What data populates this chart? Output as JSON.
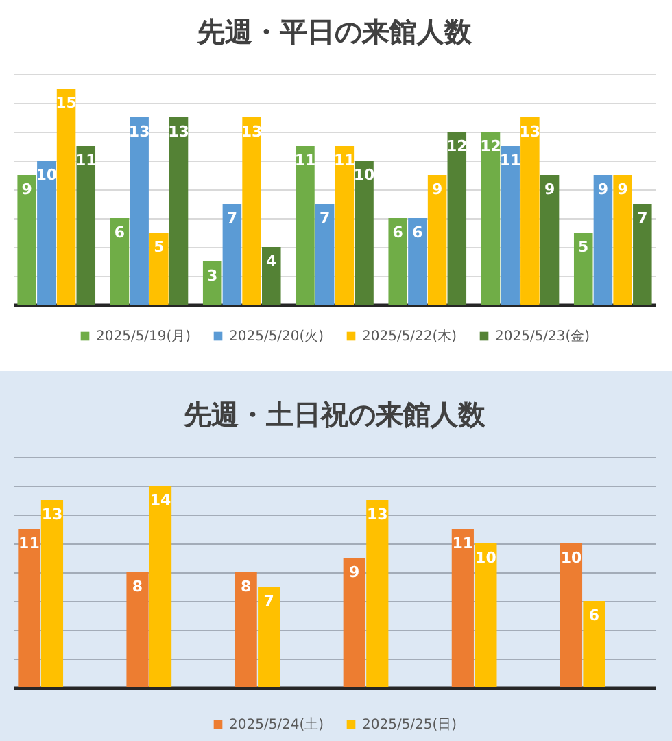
{
  "chart_data": [
    {
      "type": "bar",
      "title": "先週・平日の来館人数",
      "categories": [
        null,
        null,
        null,
        null,
        null,
        null,
        null
      ],
      "series": [
        {
          "name": "2025/5/19(月)",
          "color": "#70ad47",
          "values": [
            9,
            6,
            3,
            11,
            6,
            12,
            5
          ]
        },
        {
          "name": "2025/5/20(火)",
          "color": "#5b9bd5",
          "values": [
            10,
            13,
            7,
            7,
            6,
            11,
            9
          ]
        },
        {
          "name": "2025/5/22(木)",
          "color": "#ffc000",
          "values": [
            15,
            5,
            13,
            11,
            9,
            13,
            9
          ]
        },
        {
          "name": "2025/5/23(金)",
          "color": "#548235",
          "values": [
            11,
            13,
            4,
            10,
            12,
            9,
            7
          ]
        }
      ],
      "ylim": [
        0,
        16
      ],
      "yticks": [
        0,
        2,
        4,
        6,
        8,
        10,
        12,
        14,
        16
      ],
      "grid": "y",
      "tick_labels": false,
      "legend": "bottom",
      "data_labels": true
    },
    {
      "type": "bar",
      "title": "先週・土日祝の来館人数",
      "categories": [
        null,
        null,
        null,
        null,
        null,
        null
      ],
      "series": [
        {
          "name": "2025/5/24(土)",
          "color": "#ed7d31",
          "values": [
            11,
            8,
            8,
            9,
            11,
            10
          ]
        },
        {
          "name": "2025/5/25(日)",
          "color": "#ffc000",
          "values": [
            13,
            14,
            7,
            13,
            10,
            6
          ]
        }
      ],
      "ylim": [
        0,
        16
      ],
      "yticks": [
        0,
        2,
        4,
        6,
        8,
        10,
        12,
        14,
        16
      ],
      "grid": "y",
      "tick_labels": false,
      "legend": "bottom",
      "data_labels": true
    }
  ]
}
